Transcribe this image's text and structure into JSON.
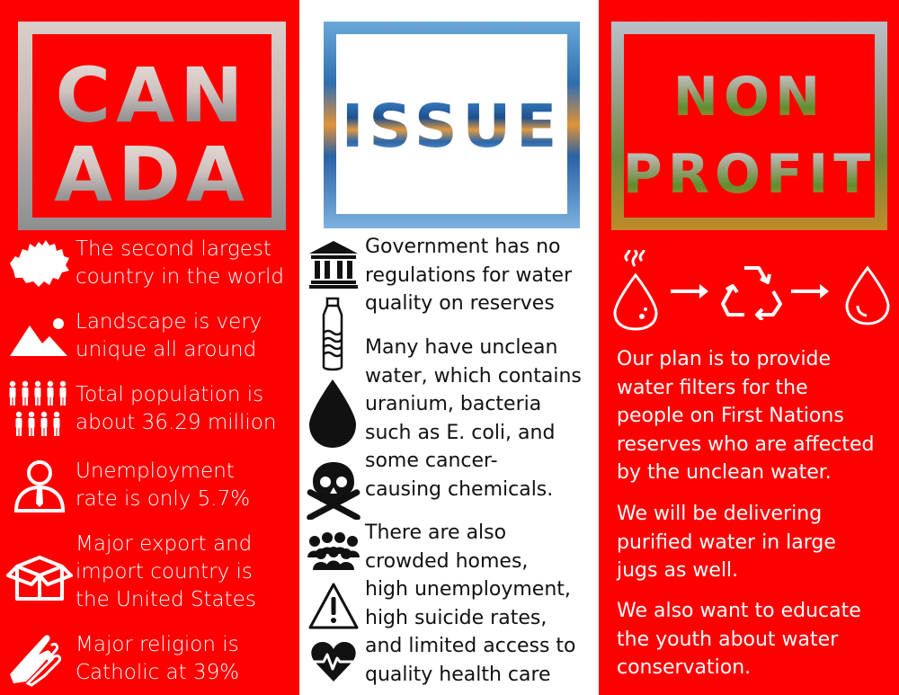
{
  "colors": {
    "red": "#ff0000",
    "white": "#ffffff",
    "black": "#111111"
  },
  "canada": {
    "title_line1": "CAN",
    "title_line2": "ADA",
    "facts": [
      {
        "icon": "canada-map-icon",
        "text": "The second largest\ncountry in the world"
      },
      {
        "icon": "landscape-icon",
        "text": "Landscape is very\nunique all around"
      },
      {
        "icon": "population-icon",
        "text": "Total population is\nabout 36.29 million"
      },
      {
        "icon": "worker-icon",
        "text": "Unemployment\nrate is only 5.7%"
      },
      {
        "icon": "box-icon",
        "text": "Major export and\nimport country is\nthe United States"
      },
      {
        "icon": "praying-hands-icon",
        "text": "Major religion is\nCatholic at 39%"
      }
    ]
  },
  "issue": {
    "title": "ISSUE",
    "paragraphs": [
      "Government has no\nregulations for water\nquality on reserves",
      "Many have unclean\nwater, which contains\nuranium, bacteria\nsuch as E. coli, and\nsome cancer-\ncausing chemicals.",
      "There are also\ncrowded homes,\nhigh unemployment,\nhigh suicide rates,\nand limited access to\nquality health care"
    ],
    "icons": [
      "government-building-icon",
      "water-bottle-icon",
      "water-drop-icon",
      "skull-crossbones-icon",
      "crowd-icon",
      "warning-icon",
      "heart-pulse-icon"
    ]
  },
  "nonprofit": {
    "title_line1": "NON",
    "title_line2": "PROFIT",
    "process_icons": [
      "dirty-water-drop-icon",
      "arrow-right-icon",
      "recycle-icon",
      "arrow-right-icon",
      "clean-water-drop-icon"
    ],
    "paragraphs": [
      "Our plan is to provide\nwater filters for the\npeople on First Nations\nreserves who are affected\nby the unclean water.",
      "We will be delivering\npurified water in large\njugs as well.",
      "We also want to educate\nthe youth about water\nconservation."
    ]
  }
}
